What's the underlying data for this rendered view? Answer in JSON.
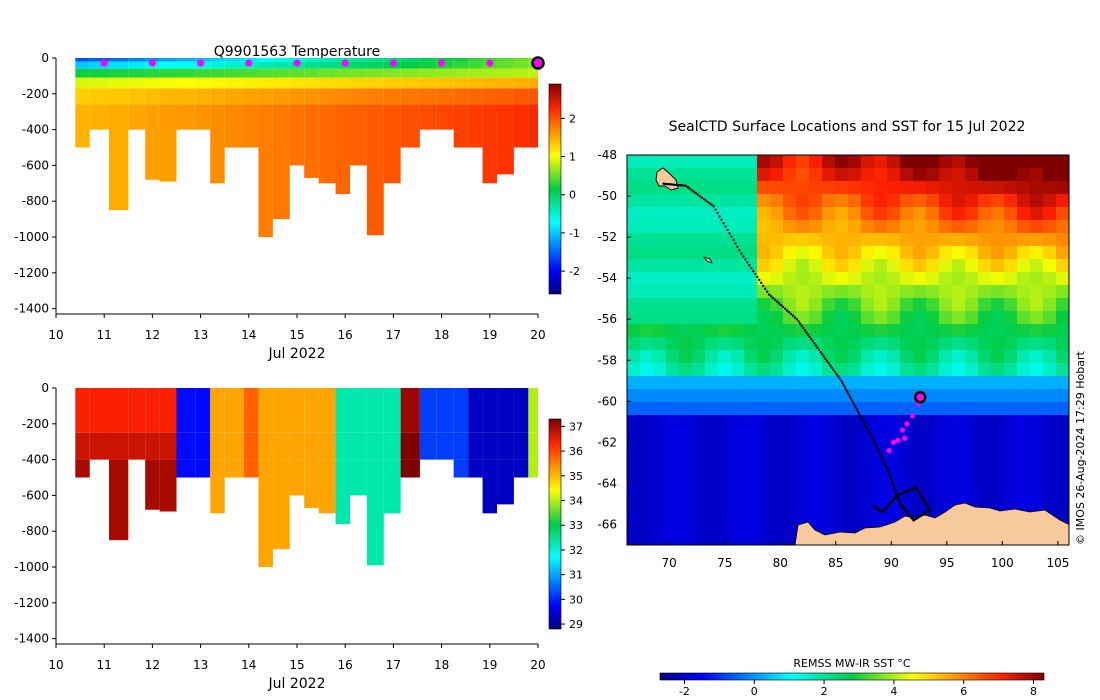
{
  "chart_data": [
    {
      "type": "heatmap",
      "title": "Q9901563  Temperature",
      "xlabel": "Jul 2022",
      "ylabel": "",
      "xlim": [
        10,
        20
      ],
      "ylim": [
        -1430,
        0
      ],
      "xticks": [
        "10",
        "11",
        "12",
        "13",
        "14",
        "15",
        "16",
        "17",
        "18",
        "19",
        "20"
      ],
      "yticks": [
        "0",
        "-200",
        "-400",
        "-600",
        "-800",
        "-1000",
        "-1200",
        "-1400"
      ],
      "colorbar": {
        "range": [
          -2.6,
          2.9
        ],
        "ticks": [
          "2",
          "1",
          "0",
          "-1",
          "-2"
        ]
      },
      "surface_markers_day": [
        11,
        12,
        13,
        14,
        15,
        16,
        17,
        18,
        19
      ],
      "latest_profile_day": 20,
      "profiles": [
        {
          "day": 10.4,
          "bottom": -500
        },
        {
          "day": 10.7,
          "bottom": -400
        },
        {
          "day": 11.1,
          "bottom": -850
        },
        {
          "day": 11.5,
          "bottom": -400
        },
        {
          "day": 11.85,
          "bottom": -680
        },
        {
          "day": 12.15,
          "bottom": -690
        },
        {
          "day": 12.5,
          "bottom": -400
        },
        {
          "day": 12.9,
          "bottom": -400
        },
        {
          "day": 13.2,
          "bottom": -700
        },
        {
          "day": 13.5,
          "bottom": -500
        },
        {
          "day": 13.9,
          "bottom": -500
        },
        {
          "day": 14.2,
          "bottom": -1000
        },
        {
          "day": 14.5,
          "bottom": -900
        },
        {
          "day": 14.85,
          "bottom": -600
        },
        {
          "day": 15.15,
          "bottom": -670
        },
        {
          "day": 15.45,
          "bottom": -700
        },
        {
          "day": 15.8,
          "bottom": -760
        },
        {
          "day": 16.1,
          "bottom": -600
        },
        {
          "day": 16.45,
          "bottom": -990
        },
        {
          "day": 16.8,
          "bottom": -700
        },
        {
          "day": 17.15,
          "bottom": -500
        },
        {
          "day": 17.55,
          "bottom": -400
        },
        {
          "day": 17.9,
          "bottom": -400
        },
        {
          "day": 18.25,
          "bottom": -500
        },
        {
          "day": 18.55,
          "bottom": -500
        },
        {
          "day": 18.85,
          "bottom": -700
        },
        {
          "day": 19.15,
          "bottom": -650
        },
        {
          "day": 19.5,
          "bottom": -500
        },
        {
          "day": 19.8,
          "bottom": -500
        }
      ]
    },
    {
      "type": "heatmap",
      "title": "",
      "xlabel": "Jul 2022",
      "ylabel": "",
      "xlim": [
        10,
        20
      ],
      "ylim": [
        -1430,
        0
      ],
      "xticks": [
        "10",
        "11",
        "12",
        "13",
        "14",
        "15",
        "16",
        "17",
        "18",
        "19",
        "20"
      ],
      "yticks": [
        "0",
        "-200",
        "-400",
        "-600",
        "-800",
        "-1000",
        "-1200",
        "-1400"
      ],
      "colorbar": {
        "range": [
          28.8,
          37.3
        ],
        "ticks": [
          "37",
          "36",
          "35",
          "34",
          "33",
          "32",
          "31",
          "30",
          "29"
        ]
      },
      "profiles": [
        {
          "day": 10.4,
          "bottom": -500,
          "value": 36.4
        },
        {
          "day": 10.7,
          "bottom": -400,
          "value": 36.4
        },
        {
          "day": 11.1,
          "bottom": -850,
          "value": 36.4
        },
        {
          "day": 11.5,
          "bottom": -400,
          "value": 36.4
        },
        {
          "day": 11.85,
          "bottom": -680,
          "value": 36.4
        },
        {
          "day": 12.15,
          "bottom": -690,
          "value": 36.4
        },
        {
          "day": 12.5,
          "bottom": -500,
          "value": 29.8
        },
        {
          "day": 12.9,
          "bottom": -500,
          "value": 29.8
        },
        {
          "day": 13.2,
          "bottom": -700,
          "value": 35.2
        },
        {
          "day": 13.5,
          "bottom": -500,
          "value": 35.2
        },
        {
          "day": 13.9,
          "bottom": -500,
          "value": 35.8
        },
        {
          "day": 14.2,
          "bottom": -1000,
          "value": 35.2
        },
        {
          "day": 14.5,
          "bottom": -900,
          "value": 35.2
        },
        {
          "day": 14.85,
          "bottom": -600,
          "value": 35.2
        },
        {
          "day": 15.15,
          "bottom": -670,
          "value": 35.2
        },
        {
          "day": 15.45,
          "bottom": -700,
          "value": 35.2
        },
        {
          "day": 15.8,
          "bottom": -760,
          "value": 32.3
        },
        {
          "day": 16.1,
          "bottom": -600,
          "value": 32.3
        },
        {
          "day": 16.45,
          "bottom": -990,
          "value": 32.3
        },
        {
          "day": 16.8,
          "bottom": -700,
          "value": 32.3
        },
        {
          "day": 17.15,
          "bottom": -500,
          "value": 37.1
        },
        {
          "day": 17.55,
          "bottom": -400,
          "value": 30.2
        },
        {
          "day": 17.9,
          "bottom": -400,
          "value": 30.2
        },
        {
          "day": 18.25,
          "bottom": -500,
          "value": 30.2
        },
        {
          "day": 18.55,
          "bottom": -500,
          "value": 29.3
        },
        {
          "day": 18.85,
          "bottom": -700,
          "value": 29.3
        },
        {
          "day": 19.15,
          "bottom": -650,
          "value": 29.3
        },
        {
          "day": 19.5,
          "bottom": -500,
          "value": 29.3
        },
        {
          "day": 19.8,
          "bottom": -500,
          "value": 34.0
        }
      ]
    },
    {
      "type": "heatmap",
      "title": "SealCTD Surface Locations and SST for 15 Jul 2022",
      "xlabel": "",
      "ylabel": "",
      "xlim": [
        66.2,
        106
      ],
      "ylim": [
        -67,
        -48
      ],
      "xticks": [
        "70",
        "75",
        "80",
        "85",
        "90",
        "95",
        "100",
        "105"
      ],
      "yticks": [
        "-48",
        "-50",
        "-52",
        "-54",
        "-56",
        "-58",
        "-60",
        "-62",
        "-64",
        "-66"
      ],
      "colorbar": {
        "label": "REMSS MW-IR SST °C",
        "range": [
          -2.7,
          8.3
        ],
        "ticks": [
          "-2",
          "0",
          "2",
          "4",
          "6",
          "8"
        ]
      },
      "latest_position": {
        "lon": 92.6,
        "lat": -59.8
      },
      "recent_positions": [
        {
          "lon": 92.4,
          "lat": -60.1
        },
        {
          "lon": 91.9,
          "lat": -60.7
        },
        {
          "lon": 91.4,
          "lat": -61.1
        },
        {
          "lon": 91.0,
          "lat": -61.4
        },
        {
          "lon": 91.2,
          "lat": -61.8
        },
        {
          "lon": 90.6,
          "lat": -61.9
        },
        {
          "lon": 90.2,
          "lat": -62.0
        },
        {
          "lon": 89.8,
          "lat": -62.4
        }
      ],
      "track": [
        {
          "lon": 69.5,
          "lat": -49.4
        },
        {
          "lon": 71.5,
          "lat": -49.5
        },
        {
          "lon": 74.0,
          "lat": -50.5
        },
        {
          "lon": 76.5,
          "lat": -52.8
        },
        {
          "lon": 79.0,
          "lat": -54.8
        },
        {
          "lon": 81.5,
          "lat": -56.0
        },
        {
          "lon": 83.5,
          "lat": -57.5
        },
        {
          "lon": 85.5,
          "lat": -59.0
        },
        {
          "lon": 87.0,
          "lat": -60.5
        },
        {
          "lon": 88.5,
          "lat": -62.0
        },
        {
          "lon": 89.8,
          "lat": -63.5
        },
        {
          "lon": 90.8,
          "lat": -65.0
        },
        {
          "lon": 92.0,
          "lat": -65.8
        },
        {
          "lon": 93.5,
          "lat": -65.3
        },
        {
          "lon": 92.2,
          "lat": -64.2
        },
        {
          "lon": 90.5,
          "lat": -64.6
        },
        {
          "lon": 89.2,
          "lat": -65.4
        },
        {
          "lon": 88.4,
          "lat": -65.1
        }
      ]
    }
  ],
  "credit": "© IMOS 26-Aug-2024 17:29 Hobart",
  "colors": {
    "land": "#f7c99b",
    "track": "#000000",
    "marker": "#ff00ff"
  }
}
